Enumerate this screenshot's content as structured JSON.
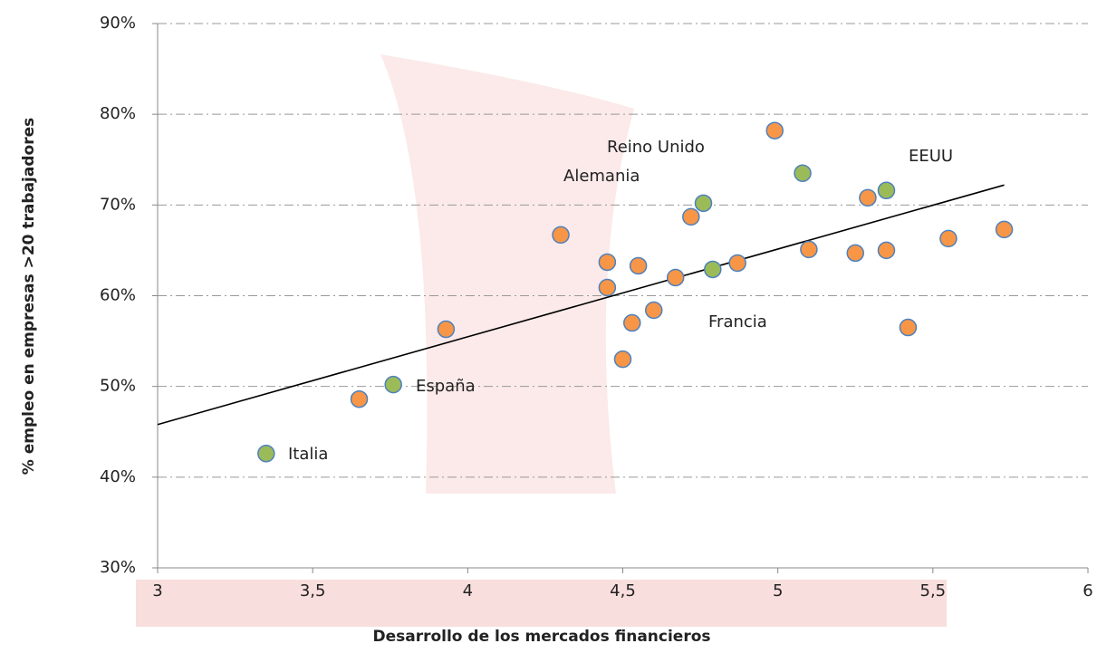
{
  "chart_data": {
    "type": "scatter",
    "xlabel": "Desarrollo de los mercados financieros",
    "ylabel": "% empleo en empresas >20 trabajadores",
    "xlim": [
      3,
      6
    ],
    "xticks": [
      3,
      {
        "value": 3.5,
        "label": "3,5"
      },
      4,
      {
        "value": 4.5,
        "label": "4,5"
      },
      5,
      {
        "value": 5.5,
        "label": "5,5"
      },
      6
    ],
    "ylim": [
      30,
      90
    ],
    "yticks": [
      {
        "value": 30,
        "label": "30%"
      },
      {
        "value": 40,
        "label": "40%"
      },
      {
        "value": 50,
        "label": "50%"
      },
      {
        "value": 60,
        "label": "60%"
      },
      {
        "value": 70,
        "label": "70%"
      },
      {
        "value": 80,
        "label": "80%"
      },
      {
        "value": 90,
        "label": "90%"
      }
    ],
    "grid": true,
    "series": [
      {
        "color": "#f79646",
        "x": [
          3.65,
          3.93,
          4.3,
          4.45,
          4.45,
          4.55,
          4.5,
          4.53,
          4.6,
          4.67,
          4.72,
          4.87,
          4.99,
          5.1,
          5.25,
          5.29,
          5.35,
          5.42,
          5.55,
          5.73
        ],
        "values": [
          48.6,
          56.3,
          66.7,
          63.7,
          60.9,
          63.3,
          53.0,
          57.0,
          58.4,
          62.0,
          68.7,
          63.6,
          78.2,
          65.1,
          64.7,
          70.8,
          65.0,
          56.5,
          66.3,
          67.3
        ]
      },
      {
        "color": "#9bbb59",
        "x": [
          3.35,
          3.76,
          4.76,
          4.79,
          5.08,
          5.35
        ],
        "values": [
          42.6,
          50.2,
          70.2,
          62.9,
          73.5,
          71.6
        ]
      }
    ],
    "trendline": {
      "color": "#000000",
      "x": [
        3,
        5.73
      ],
      "values": [
        45.8,
        72.2
      ]
    },
    "annotations": [
      "Italia",
      "España",
      "Alemania",
      "Francia",
      "Reino Unido",
      "EEUU"
    ]
  }
}
